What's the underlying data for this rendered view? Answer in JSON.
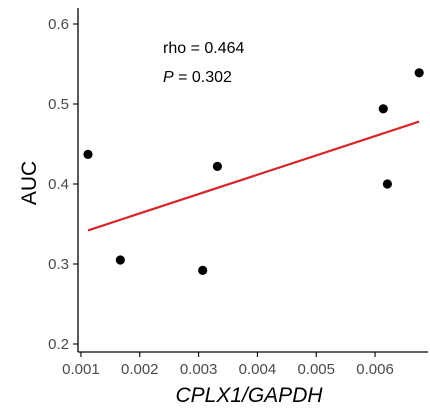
{
  "chart_data": {
    "type": "scatter",
    "xlabel": "CPLX1/GAPDH",
    "ylabel": "AUC",
    "xlim": [
      0.00095,
      0.0069
    ],
    "ylim": [
      0.19,
      0.62
    ],
    "x_ticks": [
      0.001,
      0.002,
      0.003,
      0.004,
      0.005,
      0.006
    ],
    "x_tick_labels": [
      "0.001",
      "0.002",
      "0.003",
      "0.004",
      "0.005",
      "0.006"
    ],
    "y_ticks": [
      0.2,
      0.3,
      0.4,
      0.5,
      0.6
    ],
    "y_tick_labels": [
      "0.2",
      "0.3",
      "0.4",
      "0.5",
      "0.6"
    ],
    "grid": false,
    "points": [
      {
        "x": 0.00112,
        "y": 0.437
      },
      {
        "x": 0.00167,
        "y": 0.305
      },
      {
        "x": 0.00307,
        "y": 0.292
      },
      {
        "x": 0.00332,
        "y": 0.422
      },
      {
        "x": 0.00614,
        "y": 0.494
      },
      {
        "x": 0.00621,
        "y": 0.4
      },
      {
        "x": 0.00675,
        "y": 0.539
      }
    ],
    "fit_line": {
      "x": [
        0.00112,
        0.00675
      ],
      "y": [
        0.342,
        0.478
      ],
      "color": "#d62728"
    },
    "annotations": {
      "rho": "rho = 0.464",
      "p_label": "P",
      "p_value": " = 0.302"
    },
    "point_color": "#000000"
  }
}
